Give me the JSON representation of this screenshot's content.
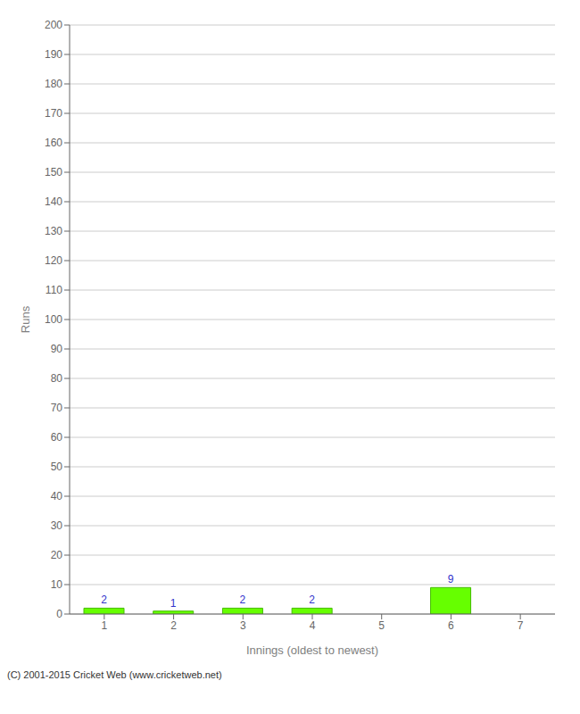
{
  "chart_data": {
    "type": "bar",
    "xlabel": "Innings (oldest to newest)",
    "ylabel": "Runs",
    "categories": [
      "1",
      "2",
      "3",
      "4",
      "5",
      "6",
      "7"
    ],
    "values": [
      2,
      1,
      2,
      2,
      0,
      9,
      0
    ],
    "color": "#66ff00",
    "ylim": [
      0,
      200
    ],
    "yticks": [
      0,
      10,
      20,
      30,
      40,
      50,
      60,
      70,
      80,
      90,
      100,
      110,
      120,
      130,
      140,
      150,
      160,
      170,
      180,
      190,
      200
    ],
    "grid": true,
    "data_labels": true,
    "annotations": [
      "(C) 2001-2015 Cricket Web (www.cricketweb.net)"
    ]
  }
}
